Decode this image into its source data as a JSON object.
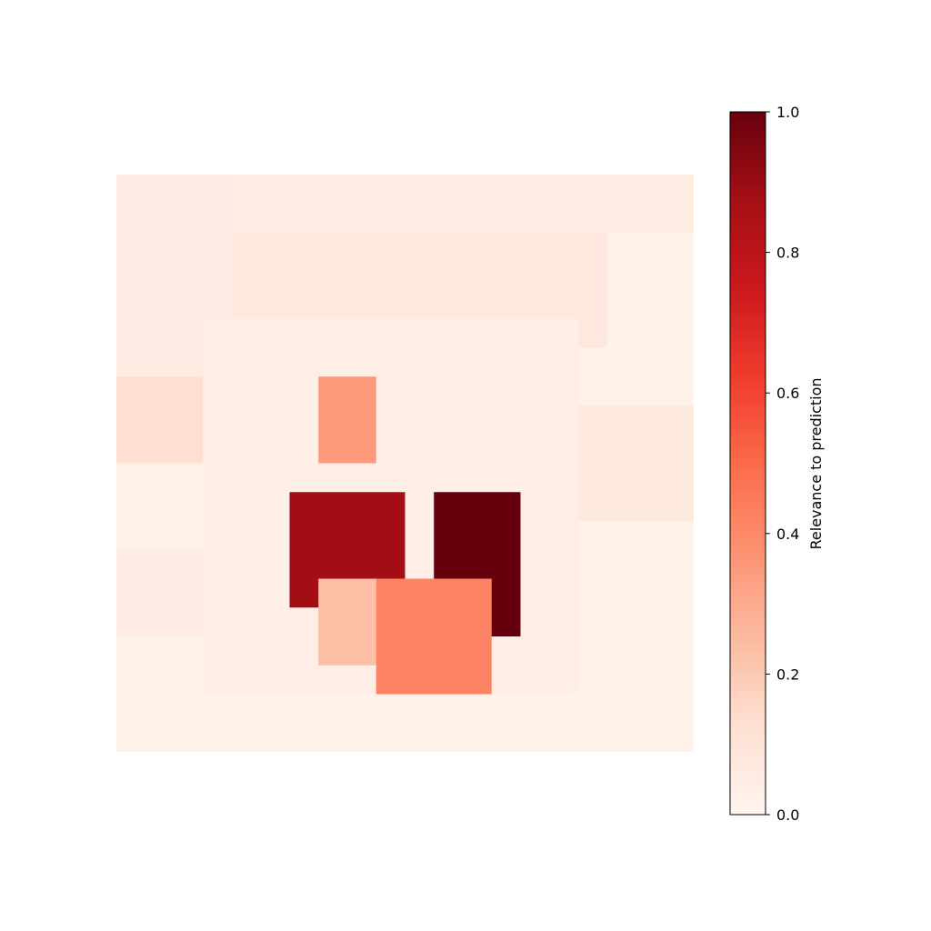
{
  "chart_data": {
    "type": "heatmap",
    "title": "",
    "xlabel": "",
    "ylabel": "",
    "axes_visible": false,
    "colormap": "Reds",
    "colormap_stops": [
      "#fff5f0",
      "#fee0d2",
      "#fcbba1",
      "#fc9272",
      "#fb6a4a",
      "#ef3b2c",
      "#cb181d",
      "#a50f15",
      "#67000d"
    ],
    "value_range": [
      0.0,
      1.0
    ],
    "colorbar": {
      "label": "Relevance to prediction",
      "ticks": [
        0.0,
        0.2,
        0.4,
        0.6,
        0.8,
        1.0
      ],
      "tick_labels": [
        "0.0",
        "0.2",
        "0.4",
        "0.6",
        "0.8",
        "1.0"
      ],
      "position": "right"
    },
    "grid": {
      "rows": 20,
      "cols": 20
    },
    "background_relevance": 0.02,
    "regions": [
      {
        "id": "r-left-upper-patch",
        "cells": [
          [
            0,
            0,
            1,
            5
          ],
          [
            2,
            0,
            3,
            5
          ],
          [
            4,
            0,
            5,
            5
          ],
          [
            6,
            0,
            7,
            5
          ]
        ],
        "value": 0.06
      },
      {
        "id": "r-left-mid-patch",
        "cells": [
          [
            7,
            0,
            9,
            2
          ]
        ],
        "value": 0.13
      },
      {
        "id": "r-left-lower-patch",
        "cells": [
          [
            13,
            0,
            13,
            3
          ],
          [
            14,
            0,
            15,
            3
          ]
        ],
        "value": 0.06
      },
      {
        "id": "r-top-band",
        "cells": [
          [
            0,
            4,
            1,
            20
          ]
        ],
        "value": 0.05
      },
      {
        "id": "r-hair",
        "cells": [
          [
            2,
            4,
            5,
            16
          ]
        ],
        "value": 0.08
      },
      {
        "id": "r-right-band",
        "cells": [
          [
            8,
            15,
            11,
            20
          ]
        ],
        "value": 0.07
      },
      {
        "id": "r-face",
        "cells": [
          [
            5,
            3,
            17,
            15
          ]
        ],
        "value": 0.04
      },
      {
        "id": "r-eye-left",
        "cells": [
          [
            7,
            7,
            9,
            8
          ]
        ],
        "value": 0.35
      },
      {
        "id": "r-mouth-left",
        "cells": [
          [
            11,
            6,
            14,
            9
          ]
        ],
        "value": 0.88
      },
      {
        "id": "r-mouth-right",
        "cells": [
          [
            11,
            11,
            15,
            13
          ]
        ],
        "value": 1.0
      },
      {
        "id": "r-chin-left",
        "cells": [
          [
            14,
            7,
            16,
            9
          ]
        ],
        "value": 0.24
      },
      {
        "id": "r-chin-mid",
        "cells": [
          [
            14,
            9,
            17,
            12
          ]
        ],
        "value": 0.42
      }
    ]
  }
}
